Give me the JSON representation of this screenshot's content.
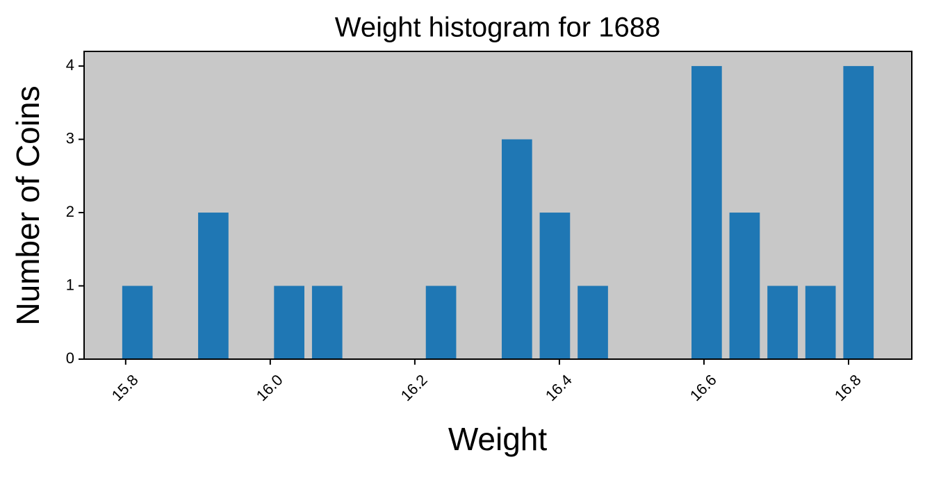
{
  "chart_data": {
    "type": "histogram",
    "title": "Weight histogram for 1688",
    "x_label": "Weight",
    "y_label": "Number of Coins",
    "bins": [
      15.79,
      15.8425,
      15.895,
      15.9475,
      16.0,
      16.0525,
      16.105,
      16.1575,
      16.21,
      16.2625,
      16.315,
      16.3675,
      16.42,
      16.4725,
      16.525,
      16.5775,
      16.63,
      16.6825,
      16.735,
      16.7875,
      16.84
    ],
    "values": [
      1,
      0,
      2,
      0,
      1,
      1,
      0,
      0,
      1,
      0,
      3,
      2,
      1,
      0,
      0,
      4,
      2,
      1,
      1,
      4
    ],
    "color": "#1f77b4",
    "background": "#c8c8c8",
    "xlim": [
      15.7425,
      16.8875
    ],
    "ylim": [
      0,
      4.2
    ],
    "xticks": [
      15.8,
      {
        "value": 16.0,
        "label": "16.0"
      },
      16.2,
      16.4,
      16.6,
      16.8
    ],
    "yticks": [
      0,
      1,
      2,
      3,
      4
    ]
  }
}
